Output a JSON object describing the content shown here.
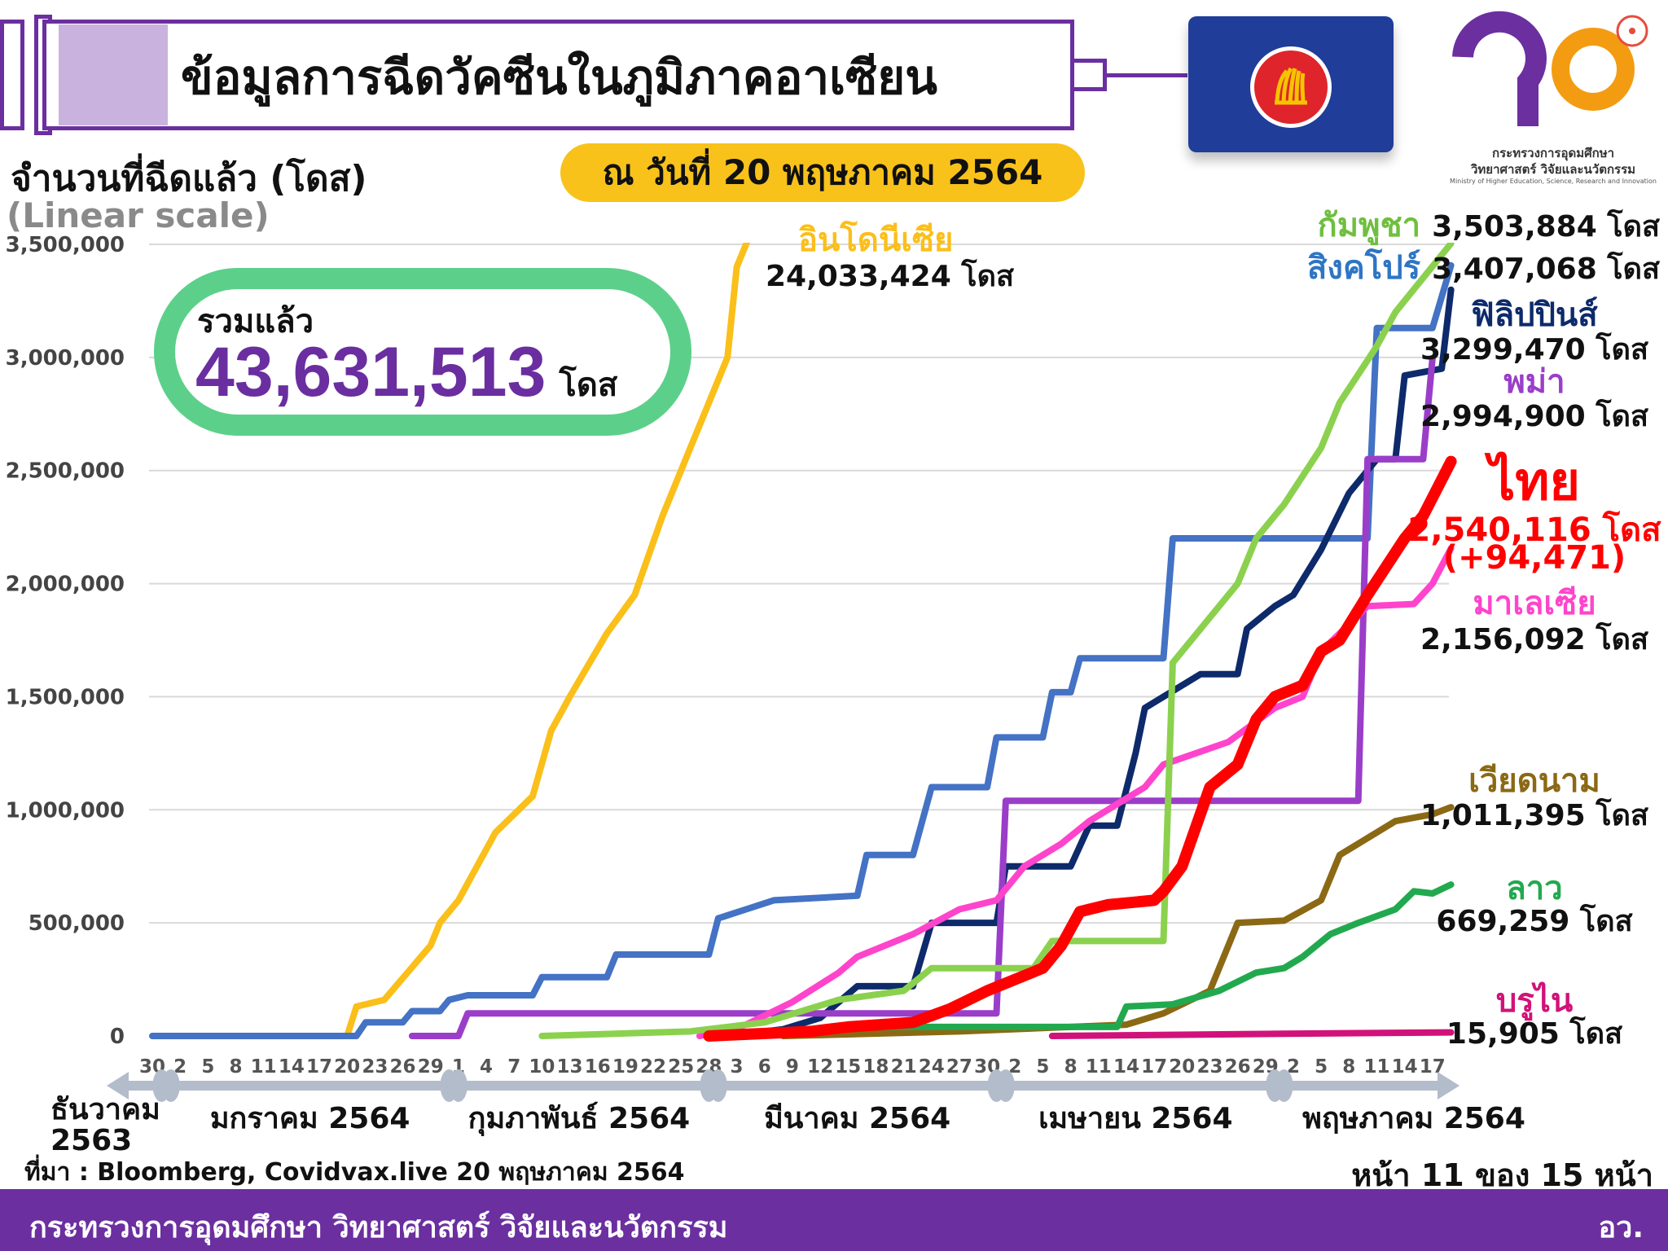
{
  "header": {
    "title": "ข้อมูลการฉีดวัคซีนในภูมิภาคอาเซียน",
    "date": "ณ วันที่ 20 พฤษภาคม 2564"
  },
  "logo": {
    "line1": "กระทรวงการอุดมศึกษา",
    "line2": "วิทยาศาสตร์ วิจัยและนวัตกรรม",
    "line3": "Ministry of Higher Education, Science, Research and Innovation"
  },
  "total": {
    "label": "รวมแล้ว",
    "value": "43,631,513",
    "unit": "โดส"
  },
  "footer": {
    "source": "ที่มา : Bloomberg, Covidvax.live 20 พฤษภาคม 2564",
    "page": "หน้า 11 ของ 15 หน้า",
    "ministry": "กระทรวงการอุดมศึกษา วิทยาศาสตร์ วิจัยและนวัตกรรม",
    "abbr": "อว."
  },
  "months": [
    {
      "label": "ธันวาคม\n2563",
      "date": "2020-12-30"
    },
    {
      "label": "มกราคม 2564",
      "date": "2021-01-16"
    },
    {
      "label": "กุมภาพันธ์ 2564",
      "date": "2021-02-14"
    },
    {
      "label": "มีนาคม 2564",
      "date": "2021-03-16"
    },
    {
      "label": "เมษายน 2564",
      "date": "2021-04-15"
    },
    {
      "label": "พฤษภาคม 2564",
      "date": "2021-05-15"
    }
  ],
  "chart_data": {
    "type": "line",
    "ylabel": "จำนวนที่ฉีดแล้ว (โดส)",
    "yscale_note": "(Linear scale)",
    "ylim": [
      0,
      3500000
    ],
    "grid": true,
    "yticks": [
      {
        "value": 0,
        "label": "0"
      },
      {
        "value": 500000,
        "label": "500,000"
      },
      {
        "value": 1000000,
        "label": "1,000,000"
      },
      {
        "value": 1500000,
        "label": "1,500,000"
      },
      {
        "value": 2000000,
        "label": "2,000,000"
      },
      {
        "value": 2500000,
        "label": "2,500,000"
      },
      {
        "value": 3000000,
        "label": "3,000,000"
      },
      {
        "value": 3500000,
        "label": "3,500,000"
      }
    ],
    "xlim": [
      "2020-12-30",
      "2021-05-19"
    ],
    "xticks": {
      "start": "2020-12-30",
      "step_days": 3,
      "labels": [
        "30",
        "2",
        "5",
        "8",
        "11",
        "14",
        "17",
        "20",
        "23",
        "26",
        "29",
        "1",
        "4",
        "7",
        "10",
        "13",
        "16",
        "19",
        "22",
        "25",
        "28",
        "3",
        "6",
        "9",
        "12",
        "15",
        "18",
        "21",
        "24",
        "27",
        "30",
        "2",
        "5",
        "8",
        "11",
        "14",
        "17",
        "20",
        "23",
        "26",
        "29",
        "2",
        "5",
        "8",
        "11",
        "14",
        "17"
      ]
    },
    "month_boundaries": [
      "2020-12-31",
      "2021-01-01",
      "2021-01-31",
      "2021-02-01",
      "2021-02-28",
      "2021-03-01",
      "2021-03-31",
      "2021-04-01",
      "2021-04-30",
      "2021-05-01"
    ],
    "series": [
      {
        "name": "อินโดนีเซีย",
        "total_label": "24,033,424 โดส",
        "color": "#fbbf1a",
        "points": [
          [
            "2021-01-13",
            0
          ],
          [
            "2021-01-20",
            0
          ],
          [
            "2021-01-21",
            130000
          ],
          [
            "2021-01-24",
            160000
          ],
          [
            "2021-01-29",
            400000
          ],
          [
            "2021-01-30",
            500000
          ],
          [
            "2021-02-01",
            600000
          ],
          [
            "2021-02-05",
            900000
          ],
          [
            "2021-02-09",
            1060000
          ],
          [
            "2021-02-11",
            1350000
          ],
          [
            "2021-02-13",
            1500000
          ],
          [
            "2021-02-17",
            1780000
          ],
          [
            "2021-02-20",
            1950000
          ],
          [
            "2021-02-23",
            2300000
          ],
          [
            "2021-02-26",
            2600000
          ],
          [
            "2021-03-02",
            3000000
          ],
          [
            "2021-03-03",
            3400000
          ],
          [
            "2021-03-05",
            3600000
          ]
        ]
      },
      {
        "name": "สิงคโปร์",
        "total_label": "3,407,068 โดส",
        "color": "#4472c4",
        "points": [
          [
            "2020-12-30",
            0
          ],
          [
            "2021-01-21",
            0
          ],
          [
            "2021-01-22",
            60000
          ],
          [
            "2021-01-26",
            60000
          ],
          [
            "2021-01-27",
            110000
          ],
          [
            "2021-01-30",
            110000
          ],
          [
            "2021-01-31",
            160000
          ],
          [
            "2021-02-02",
            180000
          ],
          [
            "2021-02-09",
            180000
          ],
          [
            "2021-02-10",
            260000
          ],
          [
            "2021-02-17",
            260000
          ],
          [
            "2021-02-18",
            360000
          ],
          [
            "2021-02-28",
            360000
          ],
          [
            "2021-03-01",
            520000
          ],
          [
            "2021-03-04",
            560000
          ],
          [
            "2021-03-07",
            600000
          ],
          [
            "2021-03-16",
            620000
          ],
          [
            "2021-03-17",
            800000
          ],
          [
            "2021-03-22",
            800000
          ],
          [
            "2021-03-24",
            1100000
          ],
          [
            "2021-03-30",
            1100000
          ],
          [
            "2021-03-31",
            1320000
          ],
          [
            "2021-04-05",
            1320000
          ],
          [
            "2021-04-06",
            1520000
          ],
          [
            "2021-04-08",
            1520000
          ],
          [
            "2021-04-09",
            1670000
          ],
          [
            "2021-04-18",
            1670000
          ],
          [
            "2021-04-19",
            2200000
          ],
          [
            "2021-05-10",
            2200000
          ],
          [
            "2021-05-11",
            3130000
          ],
          [
            "2021-05-17",
            3130000
          ],
          [
            "2021-05-19",
            3407068
          ]
        ]
      },
      {
        "name": "ฟิลิปปินส์",
        "total_label": "3,299,470 โดส",
        "color": "#0d2a6b",
        "points": [
          [
            "2021-03-02",
            0
          ],
          [
            "2021-03-08",
            30000
          ],
          [
            "2021-03-12",
            80000
          ],
          [
            "2021-03-16",
            220000
          ],
          [
            "2021-03-22",
            220000
          ],
          [
            "2021-03-24",
            500000
          ],
          [
            "2021-03-31",
            500000
          ],
          [
            "2021-04-01",
            750000
          ],
          [
            "2021-04-08",
            750000
          ],
          [
            "2021-04-10",
            930000
          ],
          [
            "2021-04-13",
            930000
          ],
          [
            "2021-04-15",
            1250000
          ],
          [
            "2021-04-16",
            1450000
          ],
          [
            "2021-04-18",
            1500000
          ],
          [
            "2021-04-22",
            1600000
          ],
          [
            "2021-04-26",
            1600000
          ],
          [
            "2021-04-27",
            1800000
          ],
          [
            "2021-04-30",
            1900000
          ],
          [
            "2021-05-02",
            1950000
          ],
          [
            "2021-05-05",
            2150000
          ],
          [
            "2021-05-08",
            2400000
          ],
          [
            "2021-05-11",
            2550000
          ],
          [
            "2021-05-13",
            2550000
          ],
          [
            "2021-05-14",
            2920000
          ],
          [
            "2021-05-18",
            2950000
          ],
          [
            "2021-05-19",
            3299470
          ]
        ]
      },
      {
        "name": "พม่า",
        "total_label": "2,994,900 โดส",
        "color": "#9a3ec9",
        "points": [
          [
            "2021-01-27",
            0
          ],
          [
            "2021-02-01",
            0
          ],
          [
            "2021-02-02",
            100000
          ],
          [
            "2021-03-31",
            100000
          ],
          [
            "2021-04-01",
            1040000
          ],
          [
            "2021-05-09",
            1040000
          ],
          [
            "2021-05-10",
            2550000
          ],
          [
            "2021-05-16",
            2550000
          ],
          [
            "2021-05-17",
            2994900
          ]
        ]
      },
      {
        "name": "มาเลเซีย",
        "total_label": "2,156,092 โดส",
        "color": "#ff44cc",
        "points": [
          [
            "2021-02-27",
            0
          ],
          [
            "2021-03-04",
            50000
          ],
          [
            "2021-03-09",
            150000
          ],
          [
            "2021-03-14",
            280000
          ],
          [
            "2021-03-16",
            350000
          ],
          [
            "2021-03-22",
            450000
          ],
          [
            "2021-03-27",
            560000
          ],
          [
            "2021-03-31",
            600000
          ],
          [
            "2021-04-03",
            750000
          ],
          [
            "2021-04-07",
            850000
          ],
          [
            "2021-04-10",
            950000
          ],
          [
            "2021-04-16",
            1100000
          ],
          [
            "2021-04-18",
            1200000
          ],
          [
            "2021-04-25",
            1300000
          ],
          [
            "2021-04-30",
            1450000
          ],
          [
            "2021-05-03",
            1500000
          ],
          [
            "2021-05-05",
            1700000
          ],
          [
            "2021-05-10",
            1900000
          ],
          [
            "2021-05-15",
            1910000
          ],
          [
            "2021-05-17",
            2000000
          ],
          [
            "2021-05-19",
            2156092
          ]
        ]
      },
      {
        "name": "กัมพูชา",
        "total_label": "3,503,884 โดส",
        "color": "#8bd14e",
        "points": [
          [
            "2021-02-10",
            0
          ],
          [
            "2021-02-26",
            20000
          ],
          [
            "2021-03-06",
            60000
          ],
          [
            "2021-03-14",
            160000
          ],
          [
            "2021-03-21",
            200000
          ],
          [
            "2021-03-24",
            300000
          ],
          [
            "2021-04-04",
            300000
          ],
          [
            "2021-04-06",
            420000
          ],
          [
            "2021-04-18",
            420000
          ],
          [
            "2021-04-19",
            1650000
          ],
          [
            "2021-04-22",
            1800000
          ],
          [
            "2021-04-26",
            2000000
          ],
          [
            "2021-04-28",
            2200000
          ],
          [
            "2021-05-01",
            2350000
          ],
          [
            "2021-05-05",
            2600000
          ],
          [
            "2021-05-07",
            2800000
          ],
          [
            "2021-05-11",
            3050000
          ],
          [
            "2021-05-13",
            3200000
          ],
          [
            "2021-05-19",
            3503884
          ]
        ]
      },
      {
        "name": "เวียดนาม",
        "total_label": "1,011,395 โดส",
        "color": "#8b6914",
        "points": [
          [
            "2021-03-08",
            0
          ],
          [
            "2021-03-27",
            20000
          ],
          [
            "2021-04-14",
            50000
          ],
          [
            "2021-04-18",
            100000
          ],
          [
            "2021-04-23",
            200000
          ],
          [
            "2021-04-26",
            500000
          ],
          [
            "2021-05-01",
            510000
          ],
          [
            "2021-05-05",
            600000
          ],
          [
            "2021-05-07",
            800000
          ],
          [
            "2021-05-09",
            850000
          ],
          [
            "2021-05-13",
            950000
          ],
          [
            "2021-05-17",
            980000
          ],
          [
            "2021-05-19",
            1011395
          ]
        ]
      },
      {
        "name": "ลาว",
        "total_label": "669,259 โดส",
        "color": "#22a94f",
        "points": [
          [
            "2021-03-16",
            40000
          ],
          [
            "2021-04-13",
            40000
          ],
          [
            "2021-04-14",
            130000
          ],
          [
            "2021-04-19",
            140000
          ],
          [
            "2021-04-24",
            200000
          ],
          [
            "2021-04-28",
            280000
          ],
          [
            "2021-05-01",
            300000
          ],
          [
            "2021-05-03",
            350000
          ],
          [
            "2021-05-06",
            450000
          ],
          [
            "2021-05-09",
            500000
          ],
          [
            "2021-05-13",
            560000
          ],
          [
            "2021-05-15",
            640000
          ],
          [
            "2021-05-17",
            630000
          ],
          [
            "2021-05-19",
            669259
          ]
        ]
      },
      {
        "name": "บรูไน",
        "total_label": "15,905 โดส",
        "color": "#d1127a",
        "points": [
          [
            "2021-04-06",
            0
          ],
          [
            "2021-05-01",
            10000
          ],
          [
            "2021-05-19",
            15905
          ]
        ]
      },
      {
        "name": "ไทย",
        "total_label": "2,540,116 โดส",
        "daily_change": "(+94,471)",
        "color": "#ff0000",
        "points": [
          [
            "2021-02-28",
            0
          ],
          [
            "2021-03-11",
            20000
          ],
          [
            "2021-03-15",
            40000
          ],
          [
            "2021-03-22",
            60000
          ],
          [
            "2021-03-26",
            120000
          ],
          [
            "2021-03-30",
            200000
          ],
          [
            "2021-04-05",
            300000
          ],
          [
            "2021-04-07",
            400000
          ],
          [
            "2021-04-09",
            550000
          ],
          [
            "2021-04-12",
            580000
          ],
          [
            "2021-04-17",
            600000
          ],
          [
            "2021-04-18",
            640000
          ],
          [
            "2021-04-20",
            750000
          ],
          [
            "2021-04-23",
            1100000
          ],
          [
            "2021-04-26",
            1200000
          ],
          [
            "2021-04-28",
            1400000
          ],
          [
            "2021-04-30",
            1500000
          ],
          [
            "2021-05-03",
            1550000
          ],
          [
            "2021-05-05",
            1700000
          ],
          [
            "2021-05-07",
            1750000
          ],
          [
            "2021-05-10",
            1950000
          ],
          [
            "2021-05-14",
            2200000
          ],
          [
            "2021-05-16",
            2300000
          ],
          [
            "2021-05-19",
            2540116
          ]
        ]
      }
    ]
  }
}
